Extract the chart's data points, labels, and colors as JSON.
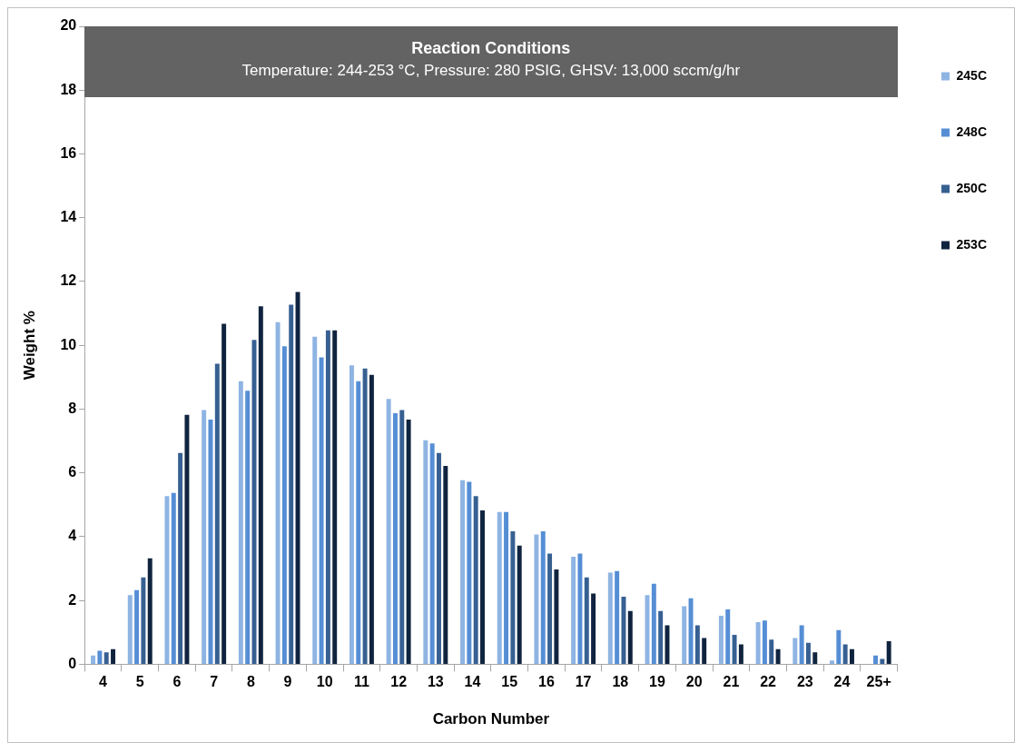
{
  "chart_data": {
    "type": "bar",
    "title": "Reaction Conditions",
    "subtitle": "Temperature: 244-253  °C, Pressure:  280 PSIG, GHSV: 13,000 sccm/g/hr",
    "xlabel": "Carbon Number",
    "ylabel": "Weight %",
    "categories": [
      "4",
      "5",
      "6",
      "7",
      "8",
      "9",
      "10",
      "11",
      "12",
      "13",
      "14",
      "15",
      "16",
      "17",
      "18",
      "19",
      "20",
      "21",
      "22",
      "23",
      "24",
      "25+"
    ],
    "series": [
      {
        "name": "245C",
        "color": "#8eb4e3",
        "values": [
          0.3,
          2.2,
          5.3,
          8.0,
          8.9,
          10.75,
          10.3,
          9.4,
          8.35,
          7.05,
          5.8,
          4.8,
          4.1,
          3.4,
          2.9,
          2.2,
          1.85,
          1.55,
          1.35,
          0.85,
          0.15,
          null
        ]
      },
      {
        "name": "248C",
        "color": "#558ed5",
        "values": [
          0.45,
          2.35,
          5.4,
          7.7,
          8.6,
          10.0,
          9.65,
          8.9,
          7.9,
          6.95,
          5.75,
          4.8,
          4.2,
          3.5,
          2.95,
          2.55,
          2.1,
          1.75,
          1.4,
          1.25,
          1.1,
          0.3
        ]
      },
      {
        "name": "250C",
        "color": "#376092",
        "values": [
          0.4,
          2.75,
          6.65,
          9.45,
          10.2,
          11.3,
          10.5,
          9.3,
          8.0,
          6.65,
          5.3,
          4.2,
          3.5,
          2.75,
          2.15,
          1.7,
          1.25,
          0.95,
          0.8,
          0.7,
          0.65,
          0.2
        ]
      },
      {
        "name": "253C",
        "color": "#10243f",
        "values": [
          0.5,
          3.35,
          7.85,
          10.7,
          11.25,
          11.7,
          10.5,
          9.1,
          7.7,
          6.25,
          4.85,
          3.75,
          3.0,
          2.25,
          1.7,
          1.25,
          0.85,
          0.65,
          0.5,
          0.4,
          0.5,
          0.75
        ]
      }
    ],
    "ylim": [
      0,
      20
    ],
    "yticks": [
      0,
      2,
      4,
      6,
      8,
      10,
      12,
      14,
      16,
      18,
      20
    ],
    "grid": false,
    "legend": "right"
  }
}
